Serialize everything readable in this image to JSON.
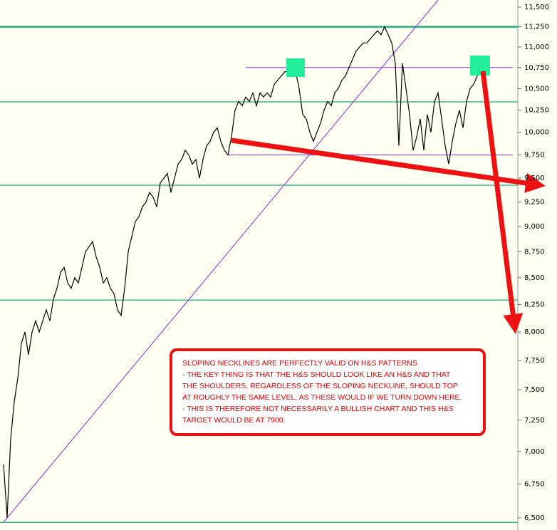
{
  "chart_data": {
    "type": "line",
    "log_scale": true,
    "color": "#000000",
    "values": [
      6900,
      6500,
      7100,
      7400,
      7600,
      7900,
      8000,
      7800,
      8000,
      8100,
      8000,
      8100,
      8200,
      8100,
      8300,
      8400,
      8550,
      8600,
      8450,
      8400,
      8500,
      8450,
      8600,
      8750,
      8800,
      8850,
      8700,
      8600,
      8450,
      8500,
      8400,
      8350,
      8200,
      8150,
      8400,
      8750,
      8900,
      9050,
      9100,
      9200,
      9250,
      9350,
      9300,
      9200,
      9450,
      9500,
      9550,
      9350,
      9500,
      9650,
      9700,
      9800,
      9750,
      9650,
      9700,
      9500,
      9700,
      9850,
      9900,
      10000,
      10050,
      9900,
      9800,
      9750,
      9950,
      10250,
      10350,
      10300,
      10400,
      10350,
      10450,
      10300,
      10450,
      10400,
      10450,
      10400,
      10550,
      10600,
      10650,
      10700,
      10700,
      10750,
      10700,
      10500,
      10200,
      10150,
      10000,
      9900,
      10000,
      10100,
      10250,
      10350,
      10300,
      10450,
      10500,
      10600,
      10650,
      10750,
      10850,
      10950,
      11000,
      11050,
      11050,
      11100,
      11150,
      11200,
      11150,
      11250,
      11150,
      11050,
      10800,
      9850,
      10800,
      10500,
      10200,
      9800,
      9950,
      10150,
      9800,
      10200,
      10000,
      10350,
      10450,
      10150,
      9850,
      9650,
      9900,
      10100,
      10250,
      10050,
      10350,
      10500,
      10550,
      10650,
      10700
    ],
    "ylim": [
      6500,
      11500
    ],
    "yticks": [
      {
        "value": 6500,
        "label": "6,500"
      },
      {
        "value": 6750,
        "label": "6,750"
      },
      {
        "value": 7000,
        "label": "7,000"
      },
      {
        "value": 7250,
        "label": "7,250"
      },
      {
        "value": 7500,
        "label": "7,500"
      },
      {
        "value": 7750,
        "label": "7,750"
      },
      {
        "value": 8000,
        "label": "8,000"
      },
      {
        "value": 8250,
        "label": "8,250"
      },
      {
        "value": 8500,
        "label": "8,500"
      },
      {
        "value": 8750,
        "label": "8,750"
      },
      {
        "value": 9000,
        "label": "9,000"
      },
      {
        "value": 9250,
        "label": "9,250"
      },
      {
        "value": 9500,
        "label": "9,500"
      },
      {
        "value": 9750,
        "label": "9,750"
      },
      {
        "value": 10000,
        "label": "10,000"
      },
      {
        "value": 10250,
        "label": "10,250"
      },
      {
        "value": 10500,
        "label": "10,500"
      },
      {
        "value": 10750,
        "label": "10,750"
      },
      {
        "value": 11000,
        "label": "11,000"
      },
      {
        "value": 11250,
        "label": "11,250"
      },
      {
        "value": 11500,
        "label": "11,500"
      }
    ],
    "support_lines": [
      11250,
      10345,
      9425,
      8290,
      6468
    ],
    "support_color": "#3cb88c",
    "neckline_levels": [
      10750,
      9750
    ],
    "neckline_color": "#8a2be2",
    "annotation": [
      "SLOPING NECKLINES ARE PERFECTLY VALID ON H&S PATTERNS",
      "- THE KEY THING IS THAT THE H&S SHOULD LOOK LIKE AN H&S AND THAT",
      "THE SHOULDERS, REGARDLESS OF THE SLOPING NECKLINE, SHOULD TOP",
      "AT ROUGHLY THE SAME LEVEL, AS THESE WOULD IF WE TURN DOWN HERE.",
      "- THIS IS THEREFORE NOT NECESSARILY A BULLISH CHART AND THIS H&S",
      "TARGET WOULD BE AT 7900."
    ]
  }
}
